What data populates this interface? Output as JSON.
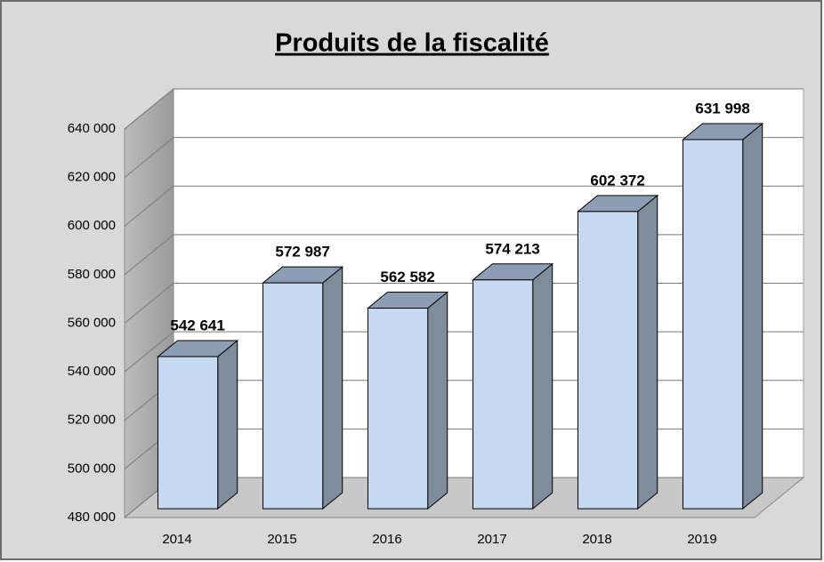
{
  "chart_data": {
    "type": "bar3d",
    "title": "Produits de la fiscalité",
    "categories": [
      "2014",
      "2015",
      "2016",
      "2017",
      "2018",
      "2019"
    ],
    "values": [
      542641,
      572987,
      562582,
      574213,
      602372,
      631998
    ],
    "value_labels": [
      "542 641",
      "572 987",
      "562 582",
      "574 213",
      "602 372",
      "631 998"
    ],
    "color": "#c6d9f1",
    "ylim": [
      480000,
      640000
    ],
    "yticks": [
      {
        "value": 480000,
        "label": "480 000"
      },
      {
        "value": 500000,
        "label": "500 000"
      },
      {
        "value": 520000,
        "label": "520 000"
      },
      {
        "value": 540000,
        "label": "540 000"
      },
      {
        "value": 560000,
        "label": "560 000"
      },
      {
        "value": 580000,
        "label": "580 000"
      },
      {
        "value": 600000,
        "label": "600 000"
      },
      {
        "value": 620000,
        "label": "620 000"
      },
      {
        "value": 640000,
        "label": "640 000"
      }
    ],
    "grid": true
  }
}
